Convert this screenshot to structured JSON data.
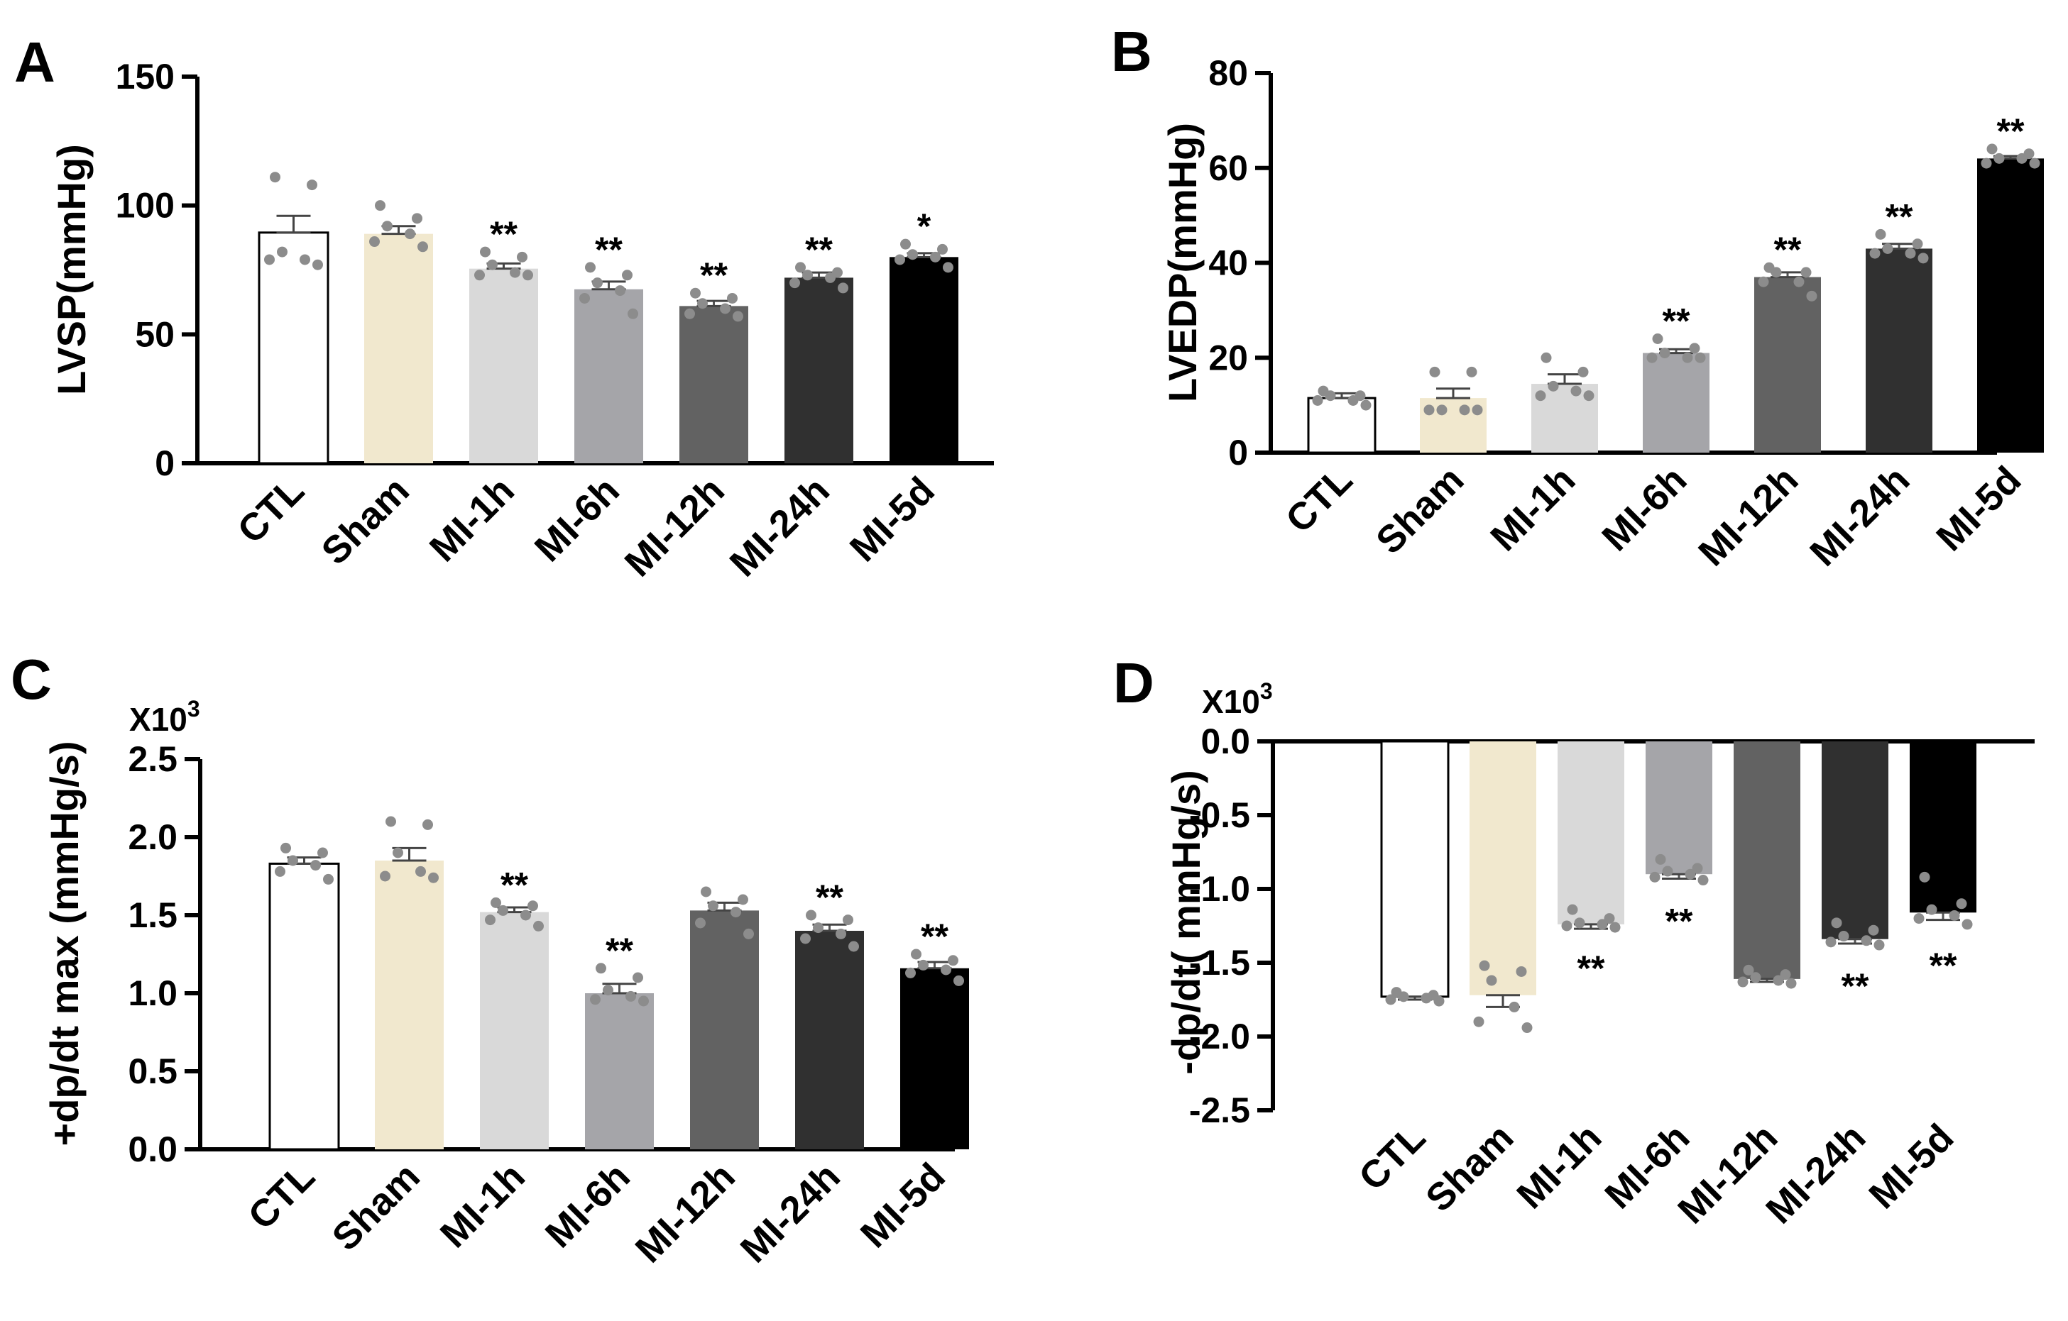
{
  "groups": [
    "CTL",
    "Sham",
    "MI-1h",
    "MI-6h",
    "MI-12h",
    "MI-24h",
    "MI-5d"
  ],
  "colors": {
    "bars": [
      "#ffffff",
      "#f1e8ce",
      "#d9d9d9",
      "#a5a5a9",
      "#626262",
      "#303030",
      "#000000"
    ],
    "dots": "#8c8c8c",
    "axis": "#000000"
  },
  "chart_data": [
    {
      "panel": "A",
      "type": "bar",
      "categories": [
        "CTL",
        "Sham",
        "MI-1h",
        "MI-6h",
        "MI-12h",
        "MI-24h",
        "MI-5d"
      ],
      "values": [
        89.5,
        89,
        75.5,
        67.5,
        61,
        72,
        80
      ],
      "errors": [
        6.5,
        3,
        2,
        3,
        2,
        2,
        1.5
      ],
      "points": [
        [
          111,
          108,
          82,
          79,
          79,
          77
        ],
        [
          100,
          95,
          92,
          89,
          86,
          84
        ],
        [
          82,
          80,
          77,
          74,
          73,
          73
        ],
        [
          76,
          73,
          70,
          67,
          64,
          58
        ],
        [
          66,
          64,
          62,
          60,
          58,
          57
        ],
        [
          76,
          74,
          73,
          72,
          70,
          68
        ],
        [
          85,
          83,
          81,
          80,
          79,
          76
        ]
      ],
      "significance": [
        "",
        "",
        "**",
        "**",
        "**",
        "**",
        "*"
      ],
      "ylabel": "LVSP(mmHg)",
      "multiplier": "",
      "ylim": [
        0,
        150
      ],
      "yticks": [
        0,
        50,
        100,
        150
      ],
      "ytick_labels": [
        "0",
        "50",
        "100",
        "150"
      ]
    },
    {
      "panel": "B",
      "type": "bar",
      "categories": [
        "CTL",
        "Sham",
        "MI-1h",
        "MI-6h",
        "MI-12h",
        "MI-24h",
        "MI-5d"
      ],
      "values": [
        11.5,
        11.5,
        14.5,
        21,
        37,
        43,
        62
      ],
      "errors": [
        1,
        2,
        2,
        0.8,
        1,
        1,
        0.5
      ],
      "points": [
        [
          13,
          12,
          12,
          11,
          11,
          10
        ],
        [
          17,
          17,
          9,
          9,
          9,
          9
        ],
        [
          20,
          17,
          14,
          13,
          12,
          12
        ],
        [
          24,
          22,
          21,
          20,
          20,
          20
        ],
        [
          39,
          38,
          38,
          36,
          36,
          33
        ],
        [
          46,
          44,
          43,
          42,
          42,
          41
        ],
        [
          64,
          63,
          62,
          62,
          61,
          61
        ]
      ],
      "significance": [
        "",
        "",
        "",
        "**",
        "**",
        "**",
        "**"
      ],
      "ylabel": "LVEDP(mmHg)",
      "multiplier": "",
      "ylim": [
        0,
        80
      ],
      "yticks": [
        0,
        20,
        40,
        60,
        80
      ],
      "ytick_labels": [
        "0",
        "20",
        "40",
        "60",
        "80"
      ]
    },
    {
      "panel": "C",
      "type": "bar",
      "categories": [
        "CTL",
        "Sham",
        "MI-1h",
        "MI-6h",
        "MI-12h",
        "MI-24h",
        "MI-5d"
      ],
      "values": [
        1.83,
        1.85,
        1.52,
        1.0,
        1.53,
        1.4,
        1.16
      ],
      "errors": [
        0.04,
        0.08,
        0.03,
        0.06,
        0.05,
        0.04,
        0.04
      ],
      "points": [
        [
          1.93,
          1.9,
          1.85,
          1.82,
          1.78,
          1.73
        ],
        [
          2.1,
          2.08,
          1.9,
          1.78,
          1.75,
          1.74
        ],
        [
          1.58,
          1.56,
          1.53,
          1.5,
          1.47,
          1.43
        ],
        [
          1.16,
          1.1,
          1.02,
          0.98,
          0.96,
          0.95
        ],
        [
          1.65,
          1.6,
          1.56,
          1.52,
          1.45,
          1.38
        ],
        [
          1.5,
          1.47,
          1.42,
          1.38,
          1.35,
          1.3
        ],
        [
          1.25,
          1.21,
          1.18,
          1.15,
          1.13,
          1.08
        ]
      ],
      "significance": [
        "",
        "",
        "**",
        "**",
        "",
        "**",
        "**"
      ],
      "ylabel": "+dp/dt max (mmHg/s)",
      "multiplier": "X10",
      "multiplier_exp": "3",
      "ylim": [
        0,
        2.5
      ],
      "yticks": [
        0,
        0.5,
        1.0,
        1.5,
        2.0,
        2.5
      ],
      "ytick_labels": [
        "0.0",
        "0.5",
        "1.0",
        "1.5",
        "2.0",
        "2.5"
      ]
    },
    {
      "panel": "D",
      "type": "bar",
      "categories": [
        "CTL",
        "Sham",
        "MI-1h",
        "MI-6h",
        "MI-12h",
        "MI-24h",
        "MI-5d"
      ],
      "values": [
        -1.73,
        -1.72,
        -1.24,
        -0.9,
        -1.61,
        -1.34,
        -1.16
      ],
      "errors": [
        0.02,
        0.08,
        0.03,
        0.03,
        0.02,
        0.03,
        0.05
      ],
      "points": [
        [
          -1.7,
          -1.72,
          -1.73,
          -1.74,
          -1.75,
          -1.76
        ],
        [
          -1.52,
          -1.56,
          -1.62,
          -1.8,
          -1.9,
          -1.94
        ],
        [
          -1.14,
          -1.2,
          -1.23,
          -1.24,
          -1.25,
          -1.26
        ],
        [
          -0.8,
          -0.86,
          -0.88,
          -0.9,
          -0.92,
          -0.94
        ],
        [
          -1.55,
          -1.58,
          -1.6,
          -1.62,
          -1.63,
          -1.64
        ],
        [
          -1.23,
          -1.28,
          -1.32,
          -1.35,
          -1.36,
          -1.38
        ],
        [
          -0.92,
          -1.1,
          -1.14,
          -1.18,
          -1.2,
          -1.24
        ]
      ],
      "significance": [
        "",
        "",
        "**",
        "**",
        "",
        "**",
        "**"
      ],
      "ylabel": "-dp/dt( mmHg/s)",
      "multiplier": "X10",
      "multiplier_exp": "3",
      "ylim": [
        -2.5,
        0
      ],
      "yticks": [
        0,
        -0.5,
        -1.0,
        -1.5,
        -2.0,
        -2.5
      ],
      "ytick_labels": [
        "0.0",
        "-0.5",
        "-1.0",
        "-1.5",
        "-2.0",
        "-2.5"
      ]
    }
  ]
}
